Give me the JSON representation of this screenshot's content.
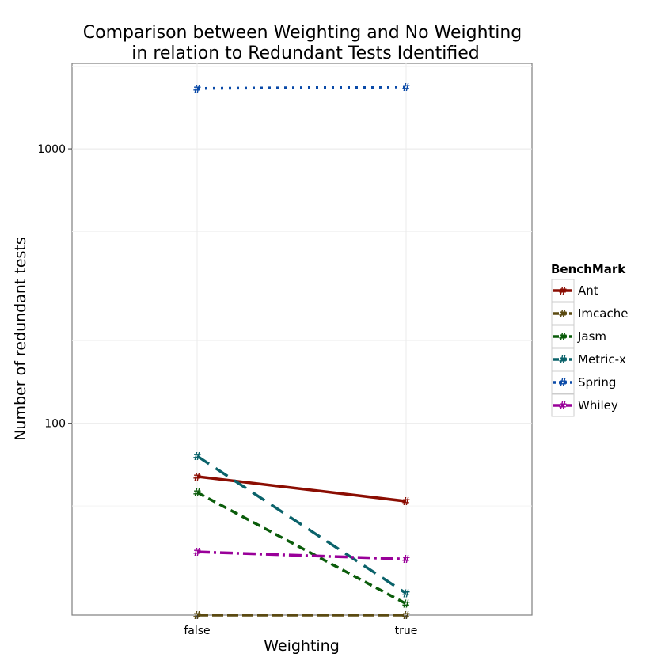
{
  "chart_data": {
    "type": "line",
    "title_lines": [
      "Comparison between Weighting and No Weighting",
      "in relation to Redundant Tests Identified"
    ],
    "xlabel": "Weighting",
    "ylabel": "Number of redundant tests",
    "categories": [
      "false",
      "true"
    ],
    "y_scale": "log10",
    "ylim": [
      20,
      2050
    ],
    "y_ticks": [
      100,
      1000
    ],
    "y_tick_labels": [
      "100",
      "1000"
    ],
    "marker_symbol": "#",
    "grid": true,
    "legend": {
      "title": "BenchMark",
      "placement": "right"
    },
    "series": [
      {
        "name": "Ant",
        "values": [
          64,
          52
        ],
        "color": "#8b0d02",
        "dash": "solid"
      },
      {
        "name": "Imcache",
        "values": [
          20,
          20
        ],
        "color": "#5b4a11",
        "dash": "longdash"
      },
      {
        "name": "Jasm",
        "values": [
          56,
          22
        ],
        "color": "#0a5c0a",
        "dash": "dashed"
      },
      {
        "name": "Metric-x",
        "values": [
          76,
          24
        ],
        "color": "#0a626a",
        "dash": "longdash2"
      },
      {
        "name": "Spring",
        "values": [
          1660,
          1680
        ],
        "color": "#0a4aa8",
        "dash": "dotted"
      },
      {
        "name": "Whiley",
        "values": [
          34,
          32
        ],
        "color": "#990099",
        "dash": "dotdash"
      }
    ]
  }
}
